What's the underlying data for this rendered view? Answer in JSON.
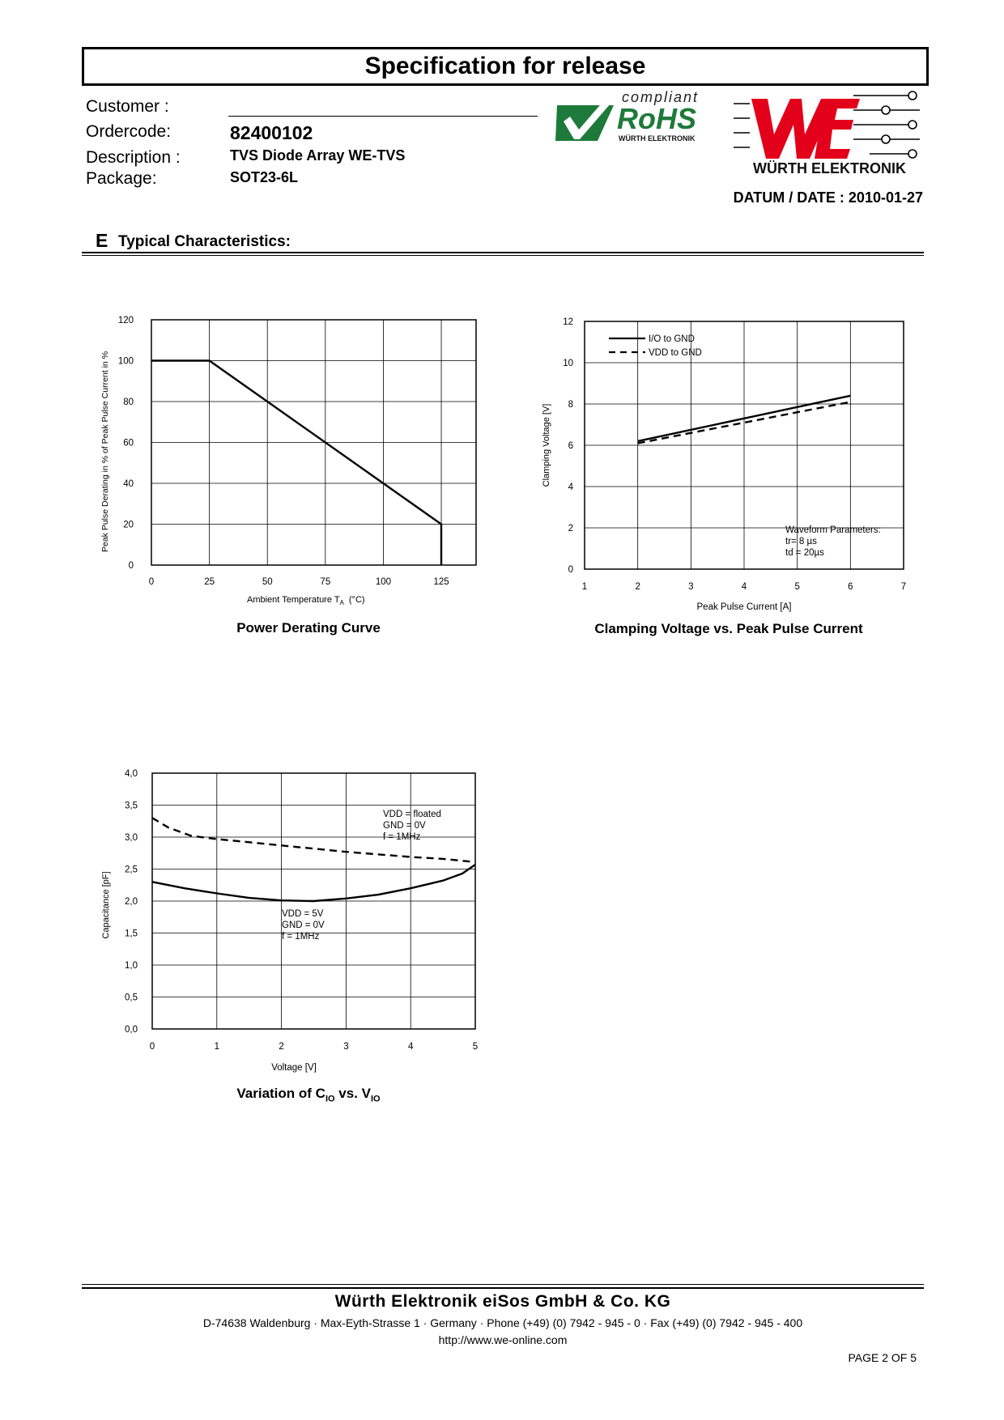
{
  "header": {
    "title": "Specification for release",
    "customer_label": "Customer :",
    "customer_value": "",
    "ordercode_label": "Ordercode:",
    "ordercode_value": "82400102",
    "description_label": "Description :",
    "description_value": "TVS Diode Array WE-TVS",
    "package_label": "Package:",
    "package_value": "SOT23-6L",
    "date": "DATUM / DATE : 2010-01-27"
  },
  "logos": {
    "rohs_compliant": "compliant",
    "rohs_text": "RoHS",
    "rohs_sub": "WÜRTH ELEKTRONIK",
    "we_letters": "WE",
    "we_name": "WÜRTH ELEKTRONIK",
    "rohs_green": "#1e7a3a",
    "we_red": "#e3001b"
  },
  "section": {
    "letter": "E",
    "title": "Typical Characteristics:"
  },
  "chart_data": [
    {
      "type": "line",
      "title": "Power Derating Curve",
      "xlabel": "Ambient Temperature T",
      "xlabel_sub": "A",
      "xlabel_unit": "(°C)",
      "ylabel": "Peak Pulse Derating in % of Peak Pulse Current in %",
      "xlim": [
        0,
        140
      ],
      "ylim": [
        0,
        120
      ],
      "x_ticks": [
        "0",
        "25",
        "50",
        "75",
        "100",
        "125"
      ],
      "y_ticks": [
        "0",
        "20",
        "40",
        "60",
        "80",
        "100",
        "120"
      ],
      "grid": true,
      "series": [
        {
          "style": "solid",
          "x": [
            0,
            25,
            125,
            125
          ],
          "y": [
            100,
            100,
            20,
            0
          ]
        }
      ]
    },
    {
      "type": "line",
      "title": "Clamping Voltage vs. Peak Pulse Current",
      "xlabel": "Peak Pulse Current [A]",
      "ylabel": "Clamping Voltage [V]",
      "xlim": [
        1,
        7
      ],
      "ylim": [
        0,
        12
      ],
      "x_ticks": [
        "1",
        "2",
        "3",
        "4",
        "5",
        "6",
        "7"
      ],
      "y_ticks": [
        "0",
        "2",
        "4",
        "6",
        "8",
        "10",
        "12"
      ],
      "grid": true,
      "legend": "top-left",
      "annotation": [
        "Waveform Parameters:",
        "tr= 8 µs",
        "td = 20µs"
      ],
      "series": [
        {
          "name": "I/O to GND",
          "style": "solid",
          "x": [
            2,
            6
          ],
          "y": [
            6.2,
            8.4
          ]
        },
        {
          "name": "VDD to GND",
          "style": "dashed",
          "x": [
            2,
            6
          ],
          "y": [
            6.1,
            8.1
          ]
        }
      ]
    },
    {
      "type": "line",
      "title_main": "Variation of C",
      "title_sub1": "IO",
      "title_mid": " vs. V",
      "title_sub2": "IO",
      "xlabel": "Voltage [V]",
      "ylabel": "Capacitance [pF]",
      "xlim": [
        0,
        5
      ],
      "ylim": [
        0,
        4
      ],
      "x_ticks": [
        "0",
        "1",
        "2",
        "3",
        "4",
        "5"
      ],
      "y_ticks": [
        "0,0",
        "0,5",
        "1,0",
        "1,5",
        "2,0",
        "2,5",
        "3,0",
        "3,5",
        "4,0"
      ],
      "grid": true,
      "annotations": [
        {
          "lines": [
            "VDD = floated",
            "GND = 0V",
            "f = 1MHz"
          ]
        },
        {
          "lines": [
            "VDD = 5V",
            "GND = 0V",
            "f = 1MHz"
          ]
        }
      ],
      "series": [
        {
          "style": "dashed",
          "x": [
            0,
            0.25,
            0.6,
            1,
            2,
            3,
            4,
            4.5,
            5
          ],
          "y": [
            3.3,
            3.15,
            3.02,
            2.97,
            2.87,
            2.77,
            2.69,
            2.66,
            2.61
          ]
        },
        {
          "style": "solid",
          "x": [
            0,
            0.5,
            1,
            1.5,
            2,
            2.5,
            3,
            3.5,
            4,
            4.5,
            4.8,
            5
          ],
          "y": [
            2.3,
            2.2,
            2.12,
            2.05,
            2.01,
            2.0,
            2.04,
            2.1,
            2.2,
            2.32,
            2.43,
            2.57
          ]
        }
      ]
    }
  ],
  "footer": {
    "company": "Würth Elektronik eiSos GmbH & Co. KG",
    "address": "D-74638 Waldenburg · Max-Eyth-Strasse 1 · Germany · Phone (+49) (0) 7942 - 945 - 0 · Fax (+49) (0) 7942 - 945 - 400",
    "url": "http://www.we-online.com",
    "page": "PAGE 2 OF 5"
  }
}
